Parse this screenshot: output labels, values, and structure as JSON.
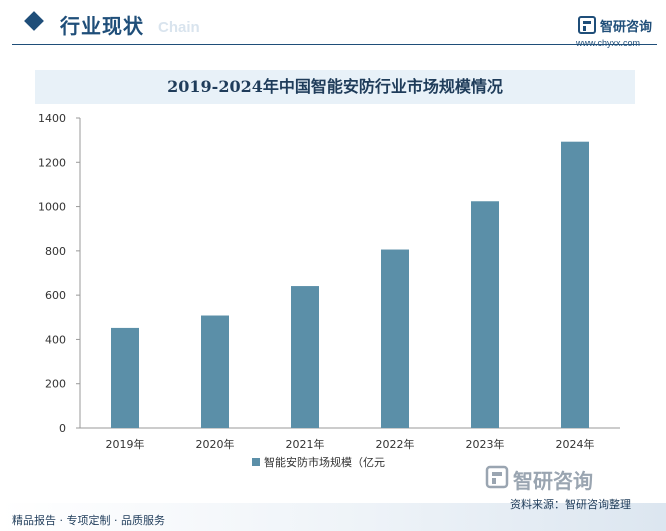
{
  "header": {
    "section_title": "行业现状",
    "section_watermark": "Chain",
    "brand_name": "智研咨询",
    "brand_url": "www.chyxx.com"
  },
  "chart_data": {
    "type": "bar",
    "title": "2019-2024年中国智能安防行业市场规模情况",
    "categories": [
      "2019年",
      "2020年",
      "2021年",
      "2022年",
      "2023年",
      "2024年"
    ],
    "series": [
      {
        "name": "智能安防市场规模（亿元",
        "values": [
          452,
          508,
          641,
          806,
          1024,
          1293
        ]
      }
    ],
    "ylim": [
      0,
      1400
    ],
    "yticks": [
      0,
      200,
      400,
      600,
      800,
      1000,
      1200,
      1400
    ],
    "bar_color": "#5b8fa8",
    "grid": false,
    "legend_position": "bottom-center"
  },
  "footer": {
    "slogan": "精品报告 · 专项定制 · 品质服务",
    "source": "资料来源：智研咨询整理",
    "brand_big": "智研咨询"
  },
  "colors": {
    "accent": "#1f4e79",
    "bar": "#5b8fa8",
    "title_band": "#e8f1f8"
  }
}
